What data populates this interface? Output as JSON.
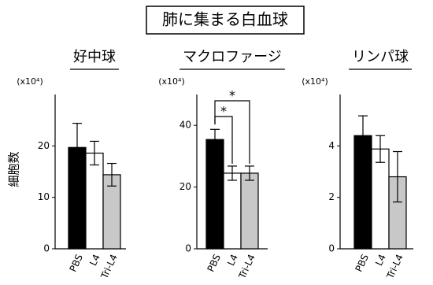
{
  "title": "肺に集まる白血球",
  "chart_data": [
    {
      "type": "bar",
      "title": "好中球",
      "y_label": "細胞数",
      "y_unit": "(x10⁴)",
      "categories": [
        "PBS",
        "L4",
        "Tri-L4"
      ],
      "values": [
        19.7,
        18.6,
        14.4
      ],
      "errors": [
        4.7,
        2.3,
        2.2
      ],
      "colors": [
        "#000000",
        "#ffffff",
        "#c8c8c8"
      ],
      "ylim": [
        0,
        30
      ],
      "yticks": [
        0,
        10,
        20
      ]
    },
    {
      "type": "bar",
      "title": "マクロファージ",
      "y_unit": "(x10⁴)",
      "categories": [
        "PBS",
        "L4",
        "Tri-L4"
      ],
      "values": [
        35.4,
        24.5,
        24.5
      ],
      "errors": [
        3.3,
        2.3,
        2.3
      ],
      "colors": [
        "#000000",
        "#ffffff",
        "#c8c8c8"
      ],
      "ylim": [
        0,
        50
      ],
      "yticks": [
        0,
        20,
        40
      ],
      "significance": [
        {
          "text": "*",
          "pair": [
            "PBS",
            "L4"
          ]
        },
        {
          "text": "*",
          "pair": [
            "PBS",
            "Tri-L4"
          ]
        }
      ]
    },
    {
      "type": "bar",
      "title": "リンパ球",
      "y_unit": "(x10⁴)",
      "categories": [
        "PBS",
        "L4",
        "Tri-L4"
      ],
      "values": [
        4.4,
        3.88,
        2.8
      ],
      "errors": [
        0.77,
        0.52,
        0.98
      ],
      "colors": [
        "#000000",
        "#ffffff",
        "#c8c8c8"
      ],
      "ylim": [
        0,
        6
      ],
      "yticks": [
        0,
        2,
        4
      ]
    }
  ]
}
